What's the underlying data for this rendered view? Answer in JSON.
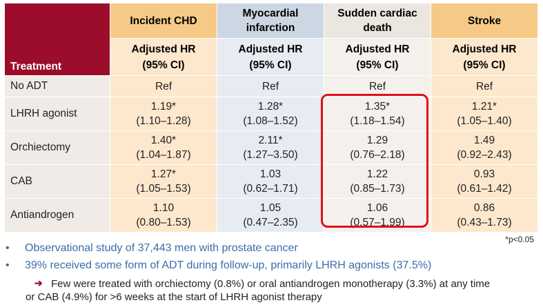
{
  "table": {
    "treatment_header": "Treatment",
    "columns": [
      {
        "title": "Incident CHD",
        "sub1": "Adjusted HR",
        "sub2": "(95% CI)"
      },
      {
        "title": "Myocardial infarction",
        "sub1": "Adjusted HR",
        "sub2": "(95% CI)"
      },
      {
        "title": "Sudden cardiac death",
        "sub1": "Adjusted HR",
        "sub2": "(95% CI)"
      },
      {
        "title": "Stroke",
        "sub1": "Adjusted HR",
        "sub2": "(95% CI)"
      }
    ],
    "rows": [
      {
        "label": "No ADT",
        "cells": [
          {
            "v": "Ref",
            "ci": ""
          },
          {
            "v": "Ref",
            "ci": ""
          },
          {
            "v": "Ref",
            "ci": ""
          },
          {
            "v": "Ref",
            "ci": ""
          }
        ]
      },
      {
        "label": "LHRH agonist",
        "cells": [
          {
            "v": "1.19*",
            "ci": "(1.10–1.28)"
          },
          {
            "v": "1.28*",
            "ci": "(1.08–1.52)"
          },
          {
            "v": "1.35*",
            "ci": "(1.18–1.54)"
          },
          {
            "v": "1.21*",
            "ci": "(1.05–1.40)"
          }
        ]
      },
      {
        "label": "Orchiectomy",
        "cells": [
          {
            "v": "1.40*",
            "ci": "(1.04–1.87)"
          },
          {
            "v": "2.11*",
            "ci": "(1.27–3.50)"
          },
          {
            "v": "1.29",
            "ci": "(0.76–2.18)"
          },
          {
            "v": "1.49",
            "ci": "(0.92–2.43)"
          }
        ]
      },
      {
        "label": "CAB",
        "cells": [
          {
            "v": "1.27*",
            "ci": "(1.05–1.53)"
          },
          {
            "v": "1.03",
            "ci": "(0.62–1.71)"
          },
          {
            "v": "1.22",
            "ci": "(0.85–1.73)"
          },
          {
            "v": "0.93",
            "ci": "(0.61–1.42)"
          }
        ]
      },
      {
        "label": "Antiandrogen",
        "cells": [
          {
            "v": "1.10",
            "ci": "(0.80–1.53)"
          },
          {
            "v": "1.05",
            "ci": "(0.47–2.35)"
          },
          {
            "v": "1.06",
            "ci": "(0.57–1.99)"
          },
          {
            "v": "0.86",
            "ci": "(0.43–1.73)"
          }
        ]
      }
    ]
  },
  "footnote": "*p<0.05",
  "bullets": [
    "Observational study of 37,443 men with prostate cancer",
    "39% received some form of ADT during follow-up, primarily LHRH agonists (37.5%)"
  ],
  "bullet_glyph": "•",
  "arrow_glyph": "➔",
  "sub_bullet_line1": "Few were treated with orchiectomy (0.8%) or oral antiandrogen monotherapy (3.3%) at any time",
  "sub_bullet_line2": "or CAB (4.9%) for >6 weeks at the start of LHRH agonist therapy",
  "colors": {
    "treatment_header": "#9b0d2b",
    "highlight_border": "#e0101a",
    "bullet_text": "#3b6da8"
  }
}
